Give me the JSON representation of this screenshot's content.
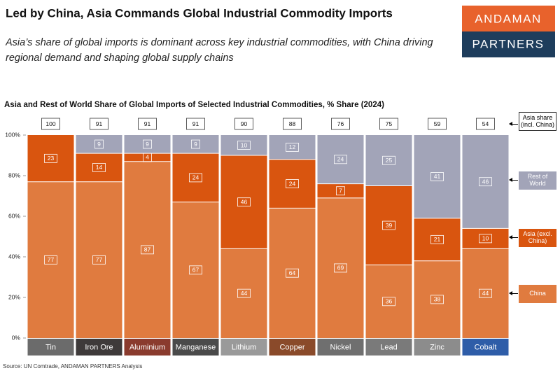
{
  "title": "Led by China, Asia Commands Global Industrial Commodity Imports",
  "subtitle": "Asia’s share of global imports is dominant across key industrial commodities, with China driving regional demand and shaping global supply chains",
  "logo": {
    "line1": "ANDAMAN",
    "line2": "PARTNERS"
  },
  "source": "Source: UN Comtrade, ANDAMAN PARTNERS Analysis",
  "chart_data": {
    "type": "stacked_bar",
    "title": "Asia and Rest of World Share of Global Imports of Selected Industrial Commodities, % Share (2024)",
    "categories": [
      "Tin",
      "Iron Ore",
      "Aluminium",
      "Manganese",
      "Lithium",
      "Copper",
      "Nickel",
      "Lead",
      "Zinc",
      "Cobalt"
    ],
    "series": [
      {
        "name": "China",
        "color": "#e07b3f",
        "values": [
          77,
          77,
          87,
          67,
          44,
          64,
          69,
          36,
          38,
          44
        ]
      },
      {
        "name": "Asia (excl. China)",
        "color": "#d9550f",
        "values": [
          23,
          14,
          4,
          24,
          46,
          24,
          7,
          39,
          21,
          10
        ]
      },
      {
        "name": "Rest of World",
        "color": "#a2a4b8",
        "values": [
          null,
          9,
          9,
          9,
          10,
          12,
          24,
          25,
          41,
          46
        ]
      }
    ],
    "totals": {
      "name": "Asia share (incl. China)",
      "values": [
        100,
        91,
        91,
        91,
        90,
        88,
        76,
        75,
        59,
        54
      ]
    },
    "ylim": [
      0,
      100
    ],
    "yticks": [
      {
        "value": 0,
        "label": "0%"
      },
      {
        "value": 20,
        "label": "20%"
      },
      {
        "value": 40,
        "label": "40%"
      },
      {
        "value": 60,
        "label": "60%"
      },
      {
        "value": 80,
        "label": "80%"
      },
      {
        "value": 100,
        "label": "100%"
      }
    ],
    "grid": false
  }
}
